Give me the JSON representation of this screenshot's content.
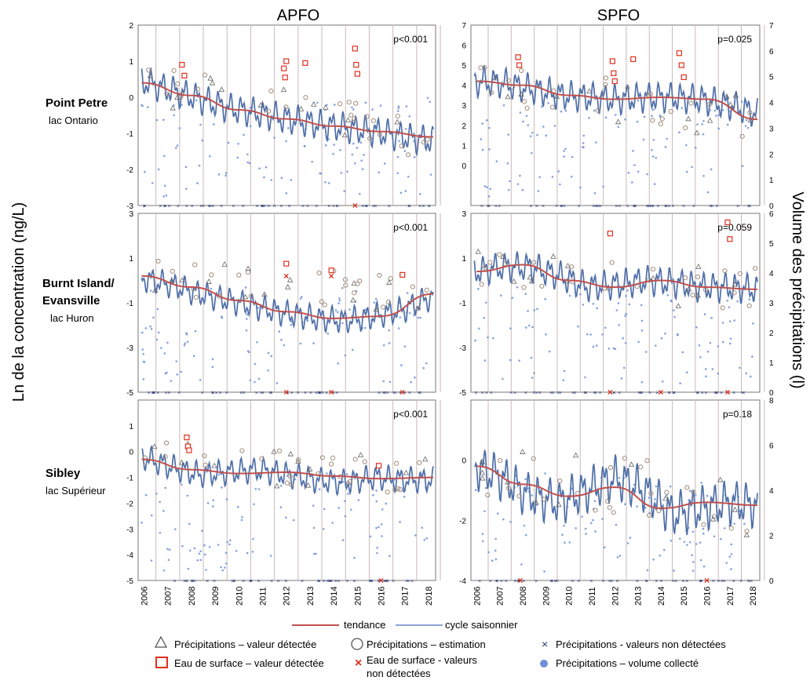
{
  "figure": {
    "y_left_label": "Ln de la concentration (ng/L)",
    "y_right_label": "Volume des précipitations (l)",
    "columns": [
      "APFO",
      "SPFO"
    ],
    "rows": [
      {
        "site": "Point Petre",
        "lake": "lac Ontario"
      },
      {
        "site": "Burnt Island/ Evansville",
        "lake": "lac Huron",
        "site_lines": [
          "Burnt Island/",
          "Evansville"
        ]
      },
      {
        "site": "Sibley",
        "lake": "lac Supérieur"
      }
    ],
    "legend": {
      "trend": "tendance",
      "seasonal": "cycle saisonnier",
      "precip_detected": "Précipitations – valeur détectée",
      "precip_estimate": "Précipitations – estimation",
      "precip_nondetect": "Précipitations - valeurs non détectées",
      "surface_detected": "Eau de surface – valeur détectée",
      "surface_nondetect_lines": [
        "Eau de surface - valeurs",
        "non détectées"
      ],
      "precip_volume": "Précipitations – volume collecté"
    },
    "colors": {
      "trend": "#c0504d",
      "seasonal": "#4f6fa8",
      "surface": "#e0301e",
      "volume": "#6f8fd8",
      "estimate": "#a08c7c",
      "grid": "#c9b9b9"
    }
  },
  "chart_data": [
    {
      "id": "apfo-ontario",
      "type": "line",
      "ylim": [
        -3,
        2
      ],
      "yticks": [
        2,
        1,
        0,
        -1,
        -2,
        -3
      ],
      "y2lim": [
        0,
        7
      ],
      "y2ticks": [],
      "p": "p<0.001",
      "x_years": [
        2006,
        2007,
        2008,
        2009,
        2010,
        2011,
        2012,
        2013,
        2014,
        2015,
        2016,
        2017,
        2018
      ],
      "trend": {
        "x": [
          2005.9,
          2008,
          2010,
          2012,
          2014,
          2016,
          2018.2
        ],
        "y": [
          0.4,
          0.05,
          -0.35,
          -0.6,
          -0.8,
          -0.95,
          -1.1
        ]
      },
      "seasonal": {
        "base": [
          0.45,
          0.2,
          -0.05,
          -0.3,
          -0.45,
          -0.6,
          -0.75,
          -0.85,
          -0.95,
          -1.1,
          -1.2
        ],
        "amp": 0.5
      },
      "surface_detected": [
        [
          2007.6,
          0.9
        ],
        [
          2007.7,
          0.6
        ],
        [
          2011.9,
          0.8
        ],
        [
          2011.95,
          0.55
        ],
        [
          2012.0,
          1.0
        ],
        [
          2012.8,
          0.95
        ],
        [
          2014.9,
          1.35
        ],
        [
          2014.95,
          0.9
        ],
        [
          2015.0,
          0.65
        ]
      ],
      "surface_nondetect": [
        [
          2014.9,
          -3
        ]
      ]
    },
    {
      "id": "spfo-ontario",
      "type": "line",
      "ylim": [
        -2,
        7
      ],
      "yticks": [
        7,
        6,
        5,
        4,
        3,
        2,
        1,
        0
      ],
      "y2lim": [
        0,
        7
      ],
      "y2ticks": [
        7,
        6,
        5,
        4,
        3,
        2,
        1,
        0
      ],
      "p": "p=0.025",
      "trend": {
        "x": [
          2006,
          2008,
          2010,
          2012,
          2014,
          2016,
          2018.2
        ],
        "y": [
          4.2,
          4.0,
          3.5,
          3.3,
          3.4,
          3.3,
          2.3
        ]
      },
      "seasonal": {
        "base": [
          4.2,
          4.1,
          3.8,
          3.5,
          3.4,
          3.3,
          3.4,
          3.4,
          3.3,
          3.0,
          2.6
        ],
        "amp": 0.9
      },
      "surface_detected": [
        [
          2007.8,
          5.4
        ],
        [
          2007.85,
          5.0
        ],
        [
          2011.9,
          5.2
        ],
        [
          2011.95,
          4.6
        ],
        [
          2012.0,
          4.2
        ],
        [
          2012.8,
          5.3
        ],
        [
          2014.8,
          5.6
        ],
        [
          2014.9,
          5.0
        ],
        [
          2015.0,
          4.4
        ]
      ],
      "surface_nondetect": []
    },
    {
      "id": "apfo-huron",
      "type": "line",
      "ylim": [
        -5,
        3
      ],
      "yticks": [
        3,
        1,
        -1,
        -3,
        -5
      ],
      "y2lim": [
        0,
        6
      ],
      "y2ticks": [],
      "p": "p<0.001",
      "trend": {
        "x": [
          2005.9,
          2008,
          2010,
          2012,
          2014,
          2016,
          2018.2
        ],
        "y": [
          0.2,
          -0.3,
          -0.9,
          -1.4,
          -1.7,
          -1.6,
          -0.6
        ]
      },
      "seasonal": {
        "base": [
          0.1,
          -0.2,
          -0.6,
          -0.9,
          -1.2,
          -1.5,
          -1.7,
          -1.8,
          -1.6,
          -1.3,
          -0.7
        ],
        "amp": 0.7
      },
      "surface_detected": [
        [
          2012.0,
          0.75
        ],
        [
          2013.9,
          0.45
        ],
        [
          2016.9,
          0.25
        ]
      ],
      "surface_nondetect": [
        [
          2012.0,
          0.2
        ],
        [
          2013.9,
          0.2
        ],
        [
          2012.0,
          -5
        ],
        [
          2013.9,
          -5
        ],
        [
          2016.9,
          -5
        ]
      ]
    },
    {
      "id": "spfo-huron",
      "type": "line",
      "ylim": [
        -5,
        3
      ],
      "yticks": [
        3,
        1,
        -1,
        -3,
        -5
      ],
      "y2lim": [
        0,
        6
      ],
      "y2ticks": [
        6,
        5,
        4,
        3,
        2,
        1,
        0
      ],
      "p": "p=0.059",
      "trend": {
        "x": [
          2006,
          2008,
          2010,
          2012,
          2014,
          2016,
          2018.2
        ],
        "y": [
          0.4,
          0.7,
          0.0,
          -0.3,
          0.0,
          -0.3,
          -0.4
        ]
      },
      "seasonal": {
        "base": [
          0.4,
          0.6,
          0.6,
          0.2,
          -0.3,
          -0.2,
          0.0,
          -0.1,
          -0.3,
          -0.3,
          -0.4
        ],
        "amp": 0.8
      },
      "surface_detected": [
        [
          2011.8,
          2.1
        ],
        [
          2016.9,
          2.6
        ],
        [
          2017.0,
          1.85
        ]
      ],
      "surface_nondetect": [
        [
          2011.8,
          -5
        ],
        [
          2014.0,
          -5
        ],
        [
          2016.9,
          -5
        ]
      ]
    },
    {
      "id": "apfo-superior",
      "type": "line",
      "ylim": [
        -5,
        2
      ],
      "yticks": [
        1,
        0,
        -1,
        -2,
        -3,
        -4,
        -5
      ],
      "y2lim": [
        0,
        8
      ],
      "y2ticks": [],
      "p": "p<0.001",
      "trend": {
        "x": [
          2005.9,
          2008,
          2010,
          2012,
          2014,
          2016,
          2018.2
        ],
        "y": [
          -0.3,
          -0.7,
          -0.85,
          -0.8,
          -0.95,
          -1.05,
          -1.0
        ]
      },
      "seasonal": {
        "base": [
          -0.2,
          -0.6,
          -0.9,
          -0.8,
          -0.7,
          -0.9,
          -1.1,
          -1.2,
          -1.0,
          -1.1,
          -1.1
        ],
        "amp": 0.6
      },
      "surface_detected": [
        [
          2007.8,
          0.55
        ],
        [
          2007.85,
          0.2
        ],
        [
          2007.9,
          0.05
        ],
        [
          2015.9,
          -0.55
        ]
      ],
      "surface_nondetect": [
        [
          2016.0,
          -5
        ]
      ]
    },
    {
      "id": "spfo-superior",
      "type": "line",
      "ylim": [
        -4,
        2
      ],
      "yticks": [
        0,
        -2,
        -4
      ],
      "y2lim": [
        0,
        8
      ],
      "y2ticks": [
        8,
        6,
        4,
        2,
        0
      ],
      "p": "p=0.18",
      "trend": {
        "x": [
          2006,
          2008,
          2010,
          2012,
          2014,
          2016,
          2018.2
        ],
        "y": [
          -0.2,
          -0.8,
          -1.2,
          -0.9,
          -1.6,
          -1.4,
          -1.5
        ]
      },
      "seasonal": {
        "base": [
          -0.2,
          -0.6,
          -1.2,
          -1.4,
          -1.0,
          -0.6,
          -1.0,
          -1.8,
          -1.6,
          -1.4,
          -1.5
        ],
        "amp": 0.9
      },
      "surface_detected": [],
      "surface_nondetect": [
        [
          2007.9,
          -4
        ],
        [
          2016.0,
          -4
        ]
      ]
    }
  ]
}
